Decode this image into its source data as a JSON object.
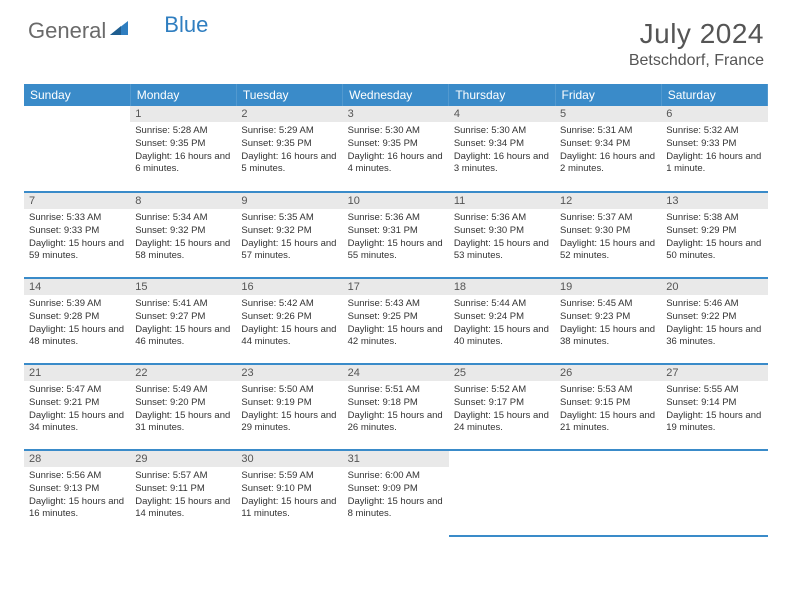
{
  "brand": {
    "part1": "General",
    "part2": "Blue"
  },
  "title": "July 2024",
  "location": "Betschdorf, France",
  "colors": {
    "header_bg": "#3a8bc9",
    "header_text": "#ffffff",
    "daynum_bg": "#e9e9e9",
    "text": "#333333",
    "brand_grey": "#6a6a6a",
    "brand_blue": "#2f7ec0"
  },
  "dayNames": [
    "Sunday",
    "Monday",
    "Tuesday",
    "Wednesday",
    "Thursday",
    "Friday",
    "Saturday"
  ],
  "weeks": [
    [
      {
        "blank": true
      },
      {
        "n": "1",
        "sr": "5:28 AM",
        "ss": "9:35 PM",
        "dl": "16 hours and 6 minutes."
      },
      {
        "n": "2",
        "sr": "5:29 AM",
        "ss": "9:35 PM",
        "dl": "16 hours and 5 minutes."
      },
      {
        "n": "3",
        "sr": "5:30 AM",
        "ss": "9:35 PM",
        "dl": "16 hours and 4 minutes."
      },
      {
        "n": "4",
        "sr": "5:30 AM",
        "ss": "9:34 PM",
        "dl": "16 hours and 3 minutes."
      },
      {
        "n": "5",
        "sr": "5:31 AM",
        "ss": "9:34 PM",
        "dl": "16 hours and 2 minutes."
      },
      {
        "n": "6",
        "sr": "5:32 AM",
        "ss": "9:33 PM",
        "dl": "16 hours and 1 minute."
      }
    ],
    [
      {
        "n": "7",
        "sr": "5:33 AM",
        "ss": "9:33 PM",
        "dl": "15 hours and 59 minutes."
      },
      {
        "n": "8",
        "sr": "5:34 AM",
        "ss": "9:32 PM",
        "dl": "15 hours and 58 minutes."
      },
      {
        "n": "9",
        "sr": "5:35 AM",
        "ss": "9:32 PM",
        "dl": "15 hours and 57 minutes."
      },
      {
        "n": "10",
        "sr": "5:36 AM",
        "ss": "9:31 PM",
        "dl": "15 hours and 55 minutes."
      },
      {
        "n": "11",
        "sr": "5:36 AM",
        "ss": "9:30 PM",
        "dl": "15 hours and 53 minutes."
      },
      {
        "n": "12",
        "sr": "5:37 AM",
        "ss": "9:30 PM",
        "dl": "15 hours and 52 minutes."
      },
      {
        "n": "13",
        "sr": "5:38 AM",
        "ss": "9:29 PM",
        "dl": "15 hours and 50 minutes."
      }
    ],
    [
      {
        "n": "14",
        "sr": "5:39 AM",
        "ss": "9:28 PM",
        "dl": "15 hours and 48 minutes."
      },
      {
        "n": "15",
        "sr": "5:41 AM",
        "ss": "9:27 PM",
        "dl": "15 hours and 46 minutes."
      },
      {
        "n": "16",
        "sr": "5:42 AM",
        "ss": "9:26 PM",
        "dl": "15 hours and 44 minutes."
      },
      {
        "n": "17",
        "sr": "5:43 AM",
        "ss": "9:25 PM",
        "dl": "15 hours and 42 minutes."
      },
      {
        "n": "18",
        "sr": "5:44 AM",
        "ss": "9:24 PM",
        "dl": "15 hours and 40 minutes."
      },
      {
        "n": "19",
        "sr": "5:45 AM",
        "ss": "9:23 PM",
        "dl": "15 hours and 38 minutes."
      },
      {
        "n": "20",
        "sr": "5:46 AM",
        "ss": "9:22 PM",
        "dl": "15 hours and 36 minutes."
      }
    ],
    [
      {
        "n": "21",
        "sr": "5:47 AM",
        "ss": "9:21 PM",
        "dl": "15 hours and 34 minutes."
      },
      {
        "n": "22",
        "sr": "5:49 AM",
        "ss": "9:20 PM",
        "dl": "15 hours and 31 minutes."
      },
      {
        "n": "23",
        "sr": "5:50 AM",
        "ss": "9:19 PM",
        "dl": "15 hours and 29 minutes."
      },
      {
        "n": "24",
        "sr": "5:51 AM",
        "ss": "9:18 PM",
        "dl": "15 hours and 26 minutes."
      },
      {
        "n": "25",
        "sr": "5:52 AM",
        "ss": "9:17 PM",
        "dl": "15 hours and 24 minutes."
      },
      {
        "n": "26",
        "sr": "5:53 AM",
        "ss": "9:15 PM",
        "dl": "15 hours and 21 minutes."
      },
      {
        "n": "27",
        "sr": "5:55 AM",
        "ss": "9:14 PM",
        "dl": "15 hours and 19 minutes."
      }
    ],
    [
      {
        "n": "28",
        "sr": "5:56 AM",
        "ss": "9:13 PM",
        "dl": "15 hours and 16 minutes."
      },
      {
        "n": "29",
        "sr": "5:57 AM",
        "ss": "9:11 PM",
        "dl": "15 hours and 14 minutes."
      },
      {
        "n": "30",
        "sr": "5:59 AM",
        "ss": "9:10 PM",
        "dl": "15 hours and 11 minutes."
      },
      {
        "n": "31",
        "sr": "6:00 AM",
        "ss": "9:09 PM",
        "dl": "15 hours and 8 minutes."
      },
      {
        "blank": true
      },
      {
        "blank": true
      },
      {
        "blank": true
      }
    ]
  ],
  "labels": {
    "sunrise": "Sunrise:",
    "sunset": "Sunset:",
    "daylight": "Daylight:"
  }
}
